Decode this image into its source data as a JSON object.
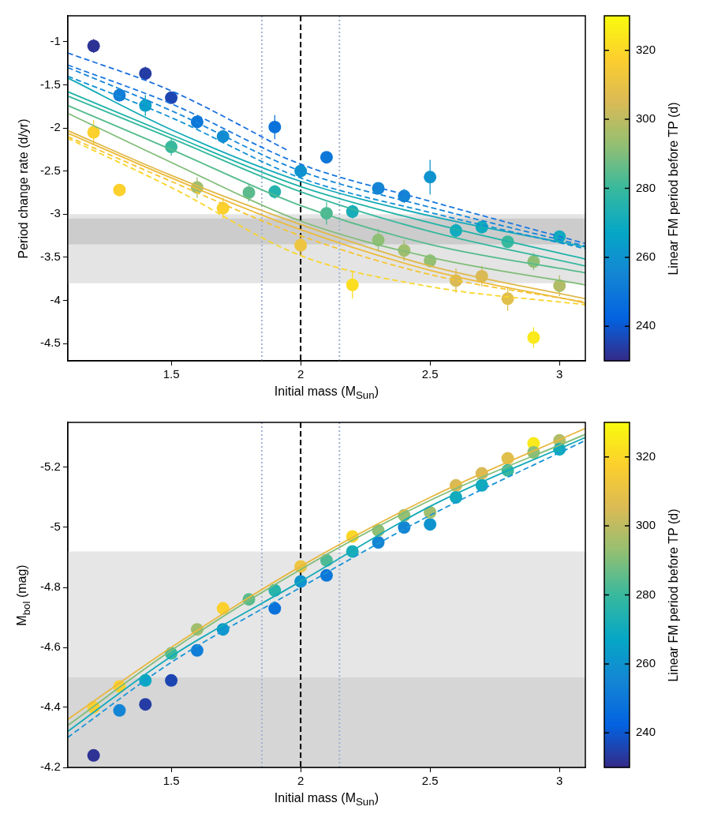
{
  "chart_data": [
    {
      "type": "scatter",
      "xlabel": "Initial mass (M$_{Sun}$)",
      "ylabel": "Period change rate (d/yr)",
      "clabel": "Linear FM period before TP (d)",
      "xlim": [
        1.1,
        3.1
      ],
      "xticks": [
        1.5,
        2,
        2.5,
        3
      ],
      "ylim": [
        -4.7,
        -0.7
      ],
      "yticks": [
        -1,
        -1.5,
        -2,
        -2.5,
        -3,
        -3.5,
        -4,
        -4.5
      ],
      "clim": [
        230,
        330
      ],
      "cticks": [
        240,
        260,
        280,
        300,
        320
      ],
      "marker": "circle",
      "bands": [
        {
          "axis": "y",
          "from": -3.0,
          "to": -3.8,
          "color": "#e4e4e4"
        },
        {
          "axis": "y",
          "from": -3.05,
          "to": -3.35,
          "color": "#cccccc"
        }
      ],
      "ref_lines": [
        {
          "axis": "x",
          "value": 1.85,
          "color": "#9fb3d1",
          "line_style": "dotted"
        },
        {
          "axis": "x",
          "value": 2.0,
          "color": "#000000",
          "line_style": "dashed"
        },
        {
          "axis": "x",
          "value": 2.15,
          "color": "#9fb3d1",
          "line_style": "dotted"
        }
      ],
      "series": [
        {
          "type": "line",
          "marker": "none",
          "line_style": "dashed",
          "color": "#1a6fe0",
          "x": [
            1.1,
            1.5,
            1.95
          ],
          "values": [
            -1.13,
            -1.57,
            -2.26
          ]
        },
        {
          "type": "line",
          "marker": "none",
          "line_style": "dashed",
          "color": "#1a78e0",
          "x": [
            1.1,
            1.5,
            2.0,
            2.5,
            3.1
          ],
          "values": [
            -1.27,
            -1.72,
            -2.42,
            -2.85,
            -3.34
          ]
        },
        {
          "type": "line",
          "marker": "none",
          "line_style": "dashed",
          "color": "#1585d8",
          "x": [
            1.1,
            1.5,
            2.0,
            2.5,
            3.1
          ],
          "values": [
            -1.3,
            -1.8,
            -2.5,
            -2.92,
            -3.37
          ]
        },
        {
          "type": "line",
          "marker": "none",
          "line_style": "dashed",
          "color": "#1090d5",
          "x": [
            1.1,
            1.5,
            2.0,
            2.5,
            3.1
          ],
          "values": [
            -1.4,
            -1.88,
            -2.58,
            -2.98,
            -3.4
          ]
        },
        {
          "type": "line",
          "marker": "none",
          "line_style": "solid",
          "color": "#14aab8",
          "x": [
            1.1,
            1.5,
            2.0,
            2.5,
            3.1
          ],
          "values": [
            -1.42,
            -2.02,
            -2.62,
            -3.02,
            -3.38
          ]
        },
        {
          "type": "line",
          "marker": "none",
          "line_style": "solid",
          "color": "#20b3a8",
          "x": [
            1.1,
            1.5,
            2.0,
            2.5,
            3.1
          ],
          "values": [
            -1.58,
            -2.08,
            -2.68,
            -3.1,
            -3.52
          ]
        },
        {
          "type": "line",
          "marker": "none",
          "line_style": "solid",
          "color": "#35b89e",
          "x": [
            1.1,
            1.5,
            2.0,
            2.5,
            3.1
          ],
          "values": [
            -1.63,
            -2.12,
            -2.74,
            -3.2,
            -3.6
          ]
        },
        {
          "type": "line",
          "marker": "none",
          "line_style": "solid",
          "color": "#55bb8c",
          "x": [
            1.1,
            1.5,
            2.0,
            2.5,
            3.1
          ],
          "values": [
            -1.74,
            -2.25,
            -2.9,
            -3.35,
            -3.68
          ]
        },
        {
          "type": "line",
          "marker": "none",
          "line_style": "solid",
          "color": "#80bd78",
          "x": [
            1.1,
            1.5,
            2.0,
            2.5,
            3.1
          ],
          "values": [
            -1.83,
            -2.4,
            -3.08,
            -3.5,
            -3.82
          ]
        },
        {
          "type": "line",
          "marker": "none",
          "line_style": "solid",
          "color": "#e0b94a",
          "x": [
            1.1,
            1.5,
            2.0,
            2.5,
            3.1
          ],
          "values": [
            -2.03,
            -2.55,
            -3.12,
            -3.6,
            -3.98
          ]
        },
        {
          "type": "line",
          "marker": "none",
          "line_style": "solid",
          "color": "#edbb3c",
          "x": [
            1.1,
            1.5,
            2.0,
            2.5,
            3.1
          ],
          "values": [
            -2.06,
            -2.58,
            -3.18,
            -3.65,
            -4.03
          ]
        },
        {
          "type": "line",
          "marker": "none",
          "line_style": "dashed",
          "color": "#f5c52e",
          "x": [
            1.1,
            1.5,
            2.0,
            2.5,
            3.1
          ],
          "values": [
            -2.1,
            -2.62,
            -3.25,
            -3.7,
            -4.02
          ]
        },
        {
          "type": "line",
          "marker": "none",
          "line_style": "dashed",
          "color": "#f9d62a",
          "x": [
            1.1,
            1.5,
            2.0,
            2.5,
            3.1
          ],
          "values": [
            -2.12,
            -2.69,
            -3.48,
            -3.84,
            -4.05
          ]
        },
        {
          "x": [
            1.2,
            1.2,
            1.3,
            1.3,
            1.4,
            1.4,
            1.5,
            1.5,
            1.6,
            1.6,
            1.7,
            1.7,
            1.8,
            1.9,
            1.9,
            2.0,
            2.0,
            2.1,
            2.1,
            2.2,
            2.2,
            2.3,
            2.3,
            2.4,
            2.4,
            2.5,
            2.5,
            2.6,
            2.6,
            2.7,
            2.7,
            2.8,
            2.8,
            2.9,
            2.9,
            3.0,
            3.0
          ],
          "values": [
            -1.05,
            -2.05,
            -1.62,
            -2.72,
            -1.37,
            -1.74,
            -1.65,
            -2.22,
            -1.93,
            -2.69,
            -2.1,
            -2.93,
            -2.75,
            -1.99,
            -2.74,
            -2.5,
            -3.36,
            -2.34,
            -2.99,
            -2.97,
            -3.82,
            -2.7,
            -3.3,
            -2.79,
            -3.42,
            -2.57,
            -3.54,
            -3.19,
            -3.77,
            -3.15,
            -3.72,
            -3.32,
            -3.98,
            -3.55,
            -4.43,
            -3.26,
            -3.83
          ],
          "colors": [
            "#2d3395",
            "#fcd02d",
            "#107dd7",
            "#fcd02d",
            "#253ca4",
            "#09a0c9",
            "#1d45b2",
            "#38b99e",
            "#0d77d9",
            "#a0be6d",
            "#118dd1",
            "#fcd02d",
            "#5cbb8d",
            "#0a72db",
            "#24b2ae",
            "#0e93ce",
            "#edc540",
            "#0d77d9",
            "#4eba94",
            "#18adb8",
            "#fbde22",
            "#1485d4",
            "#8ebf75",
            "#1485d4",
            "#a0be6d",
            "#0e93ce",
            "#95bf72",
            "#10abbe",
            "#d9ba56",
            "#10abbe",
            "#d9ba56",
            "#38b99e",
            "#e1bf4c",
            "#8ebf75",
            "#fae91b",
            "#10abbe",
            "#b1bd66"
          ],
          "errors": [
            0.08,
            0.14,
            0.07,
            0.07,
            0.08,
            0.12,
            0.06,
            0.1,
            0.08,
            0.12,
            0.08,
            0.12,
            0.1,
            0.14,
            0.08,
            0.08,
            0.12,
            0.06,
            0.13,
            0.08,
            0.16,
            0.06,
            0.13,
            0.08,
            0.12,
            0.2,
            0.08,
            0.08,
            0.14,
            0.06,
            0.12,
            0.06,
            0.14,
            0.1,
            0.12,
            0.07,
            0.12
          ]
        }
      ]
    },
    {
      "type": "scatter",
      "xlabel": "Initial mass (M$_{Sun}$)",
      "ylabel": "M$_{bol}$ (mag)",
      "clabel": "Linear FM period before TP (d)",
      "xlim": [
        1.1,
        3.1
      ],
      "xticks": [
        1.5,
        2,
        2.5,
        3
      ],
      "ylim": [
        -4.2,
        -5.35
      ],
      "yticks": [
        -4.2,
        -4.4,
        -4.6,
        -4.8,
        -5,
        -5.2
      ],
      "clim": [
        230,
        330
      ],
      "cticks": [
        240,
        260,
        280,
        300,
        320
      ],
      "marker": "circle",
      "bands": [
        {
          "axis": "y",
          "from": -4.2,
          "to": -4.5,
          "color": "#d6d6d6"
        },
        {
          "axis": "y",
          "from": -4.5,
          "to": -4.92,
          "color": "#e6e6e6"
        }
      ],
      "ref_lines": [
        {
          "axis": "x",
          "value": 1.85,
          "color": "#9fb3d1",
          "line_style": "dotted"
        },
        {
          "axis": "x",
          "value": 2.0,
          "color": "#000000",
          "line_style": "dashed"
        },
        {
          "axis": "x",
          "value": 2.15,
          "color": "#9fb3d1",
          "line_style": "dotted"
        }
      ],
      "series": [
        {
          "type": "line",
          "marker": "none",
          "line_style": "solid",
          "color": "#e8b840",
          "x": [
            1.1,
            1.5,
            2.0,
            2.5,
            3.1
          ],
          "values": [
            -4.36,
            -4.6,
            -4.87,
            -5.1,
            -5.33
          ]
        },
        {
          "type": "line",
          "marker": "none",
          "line_style": "solid",
          "color": "#80bd78",
          "x": [
            1.1,
            1.5,
            2.0,
            2.5,
            3.1
          ],
          "values": [
            -4.34,
            -4.59,
            -4.86,
            -5.09,
            -5.31
          ]
        },
        {
          "type": "line",
          "marker": "none",
          "line_style": "solid",
          "color": "#14aab8",
          "x": [
            1.1,
            1.5,
            2.0,
            2.5,
            3.1
          ],
          "values": [
            -4.32,
            -4.57,
            -4.82,
            -5.07,
            -5.3
          ]
        },
        {
          "type": "line",
          "marker": "none",
          "line_style": "dashed",
          "color": "#1a95d8",
          "x": [
            1.1,
            1.5,
            2.0,
            2.5,
            3.1
          ],
          "values": [
            -4.3,
            -4.55,
            -4.8,
            -5.04,
            -5.29
          ]
        },
        {
          "x": [
            1.2,
            1.2,
            1.3,
            1.3,
            1.4,
            1.4,
            1.5,
            1.5,
            1.6,
            1.6,
            1.7,
            1.7,
            1.8,
            1.9,
            1.9,
            2.0,
            2.0,
            2.1,
            2.1,
            2.2,
            2.2,
            2.3,
            2.3,
            2.4,
            2.4,
            2.5,
            2.5,
            2.6,
            2.6,
            2.7,
            2.7,
            2.8,
            2.8,
            2.9,
            2.9,
            3.0,
            3.0
          ],
          "values": [
            -4.24,
            -4.4,
            -4.39,
            -4.47,
            -4.41,
            -4.49,
            -4.49,
            -4.58,
            -4.59,
            -4.66,
            -4.73,
            -4.66,
            -4.76,
            -4.73,
            -4.79,
            -4.87,
            -4.82,
            -4.84,
            -4.89,
            -4.97,
            -4.92,
            -4.95,
            -4.99,
            -5.0,
            -5.04,
            -5.01,
            -5.05,
            -5.14,
            -5.1,
            -5.18,
            -5.14,
            -5.23,
            -5.19,
            -5.28,
            -5.25,
            -5.29,
            -5.26
          ],
          "colors": [
            "#2d3395",
            "#fcd02d",
            "#1485d4",
            "#fcd02d",
            "#253ca4",
            "#08a8c4",
            "#1d45b2",
            "#38b99e",
            "#107dd7",
            "#a0be6d",
            "#fcd02d",
            "#0c98cc",
            "#5cbb8d",
            "#0a72db",
            "#28b3ab",
            "#edc540",
            "#0e93ce",
            "#0d77d9",
            "#4eba94",
            "#fbd728",
            "#18adb8",
            "#1485d4",
            "#8ebf75",
            "#1485d4",
            "#95bf72",
            "#0e93ce",
            "#a0be6d",
            "#d9ba56",
            "#10abbe",
            "#d9ba56",
            "#10abbe",
            "#e1bf4c",
            "#38b99e",
            "#fae91b",
            "#8ebf75",
            "#b1bd66",
            "#10abbe"
          ]
        }
      ]
    }
  ]
}
